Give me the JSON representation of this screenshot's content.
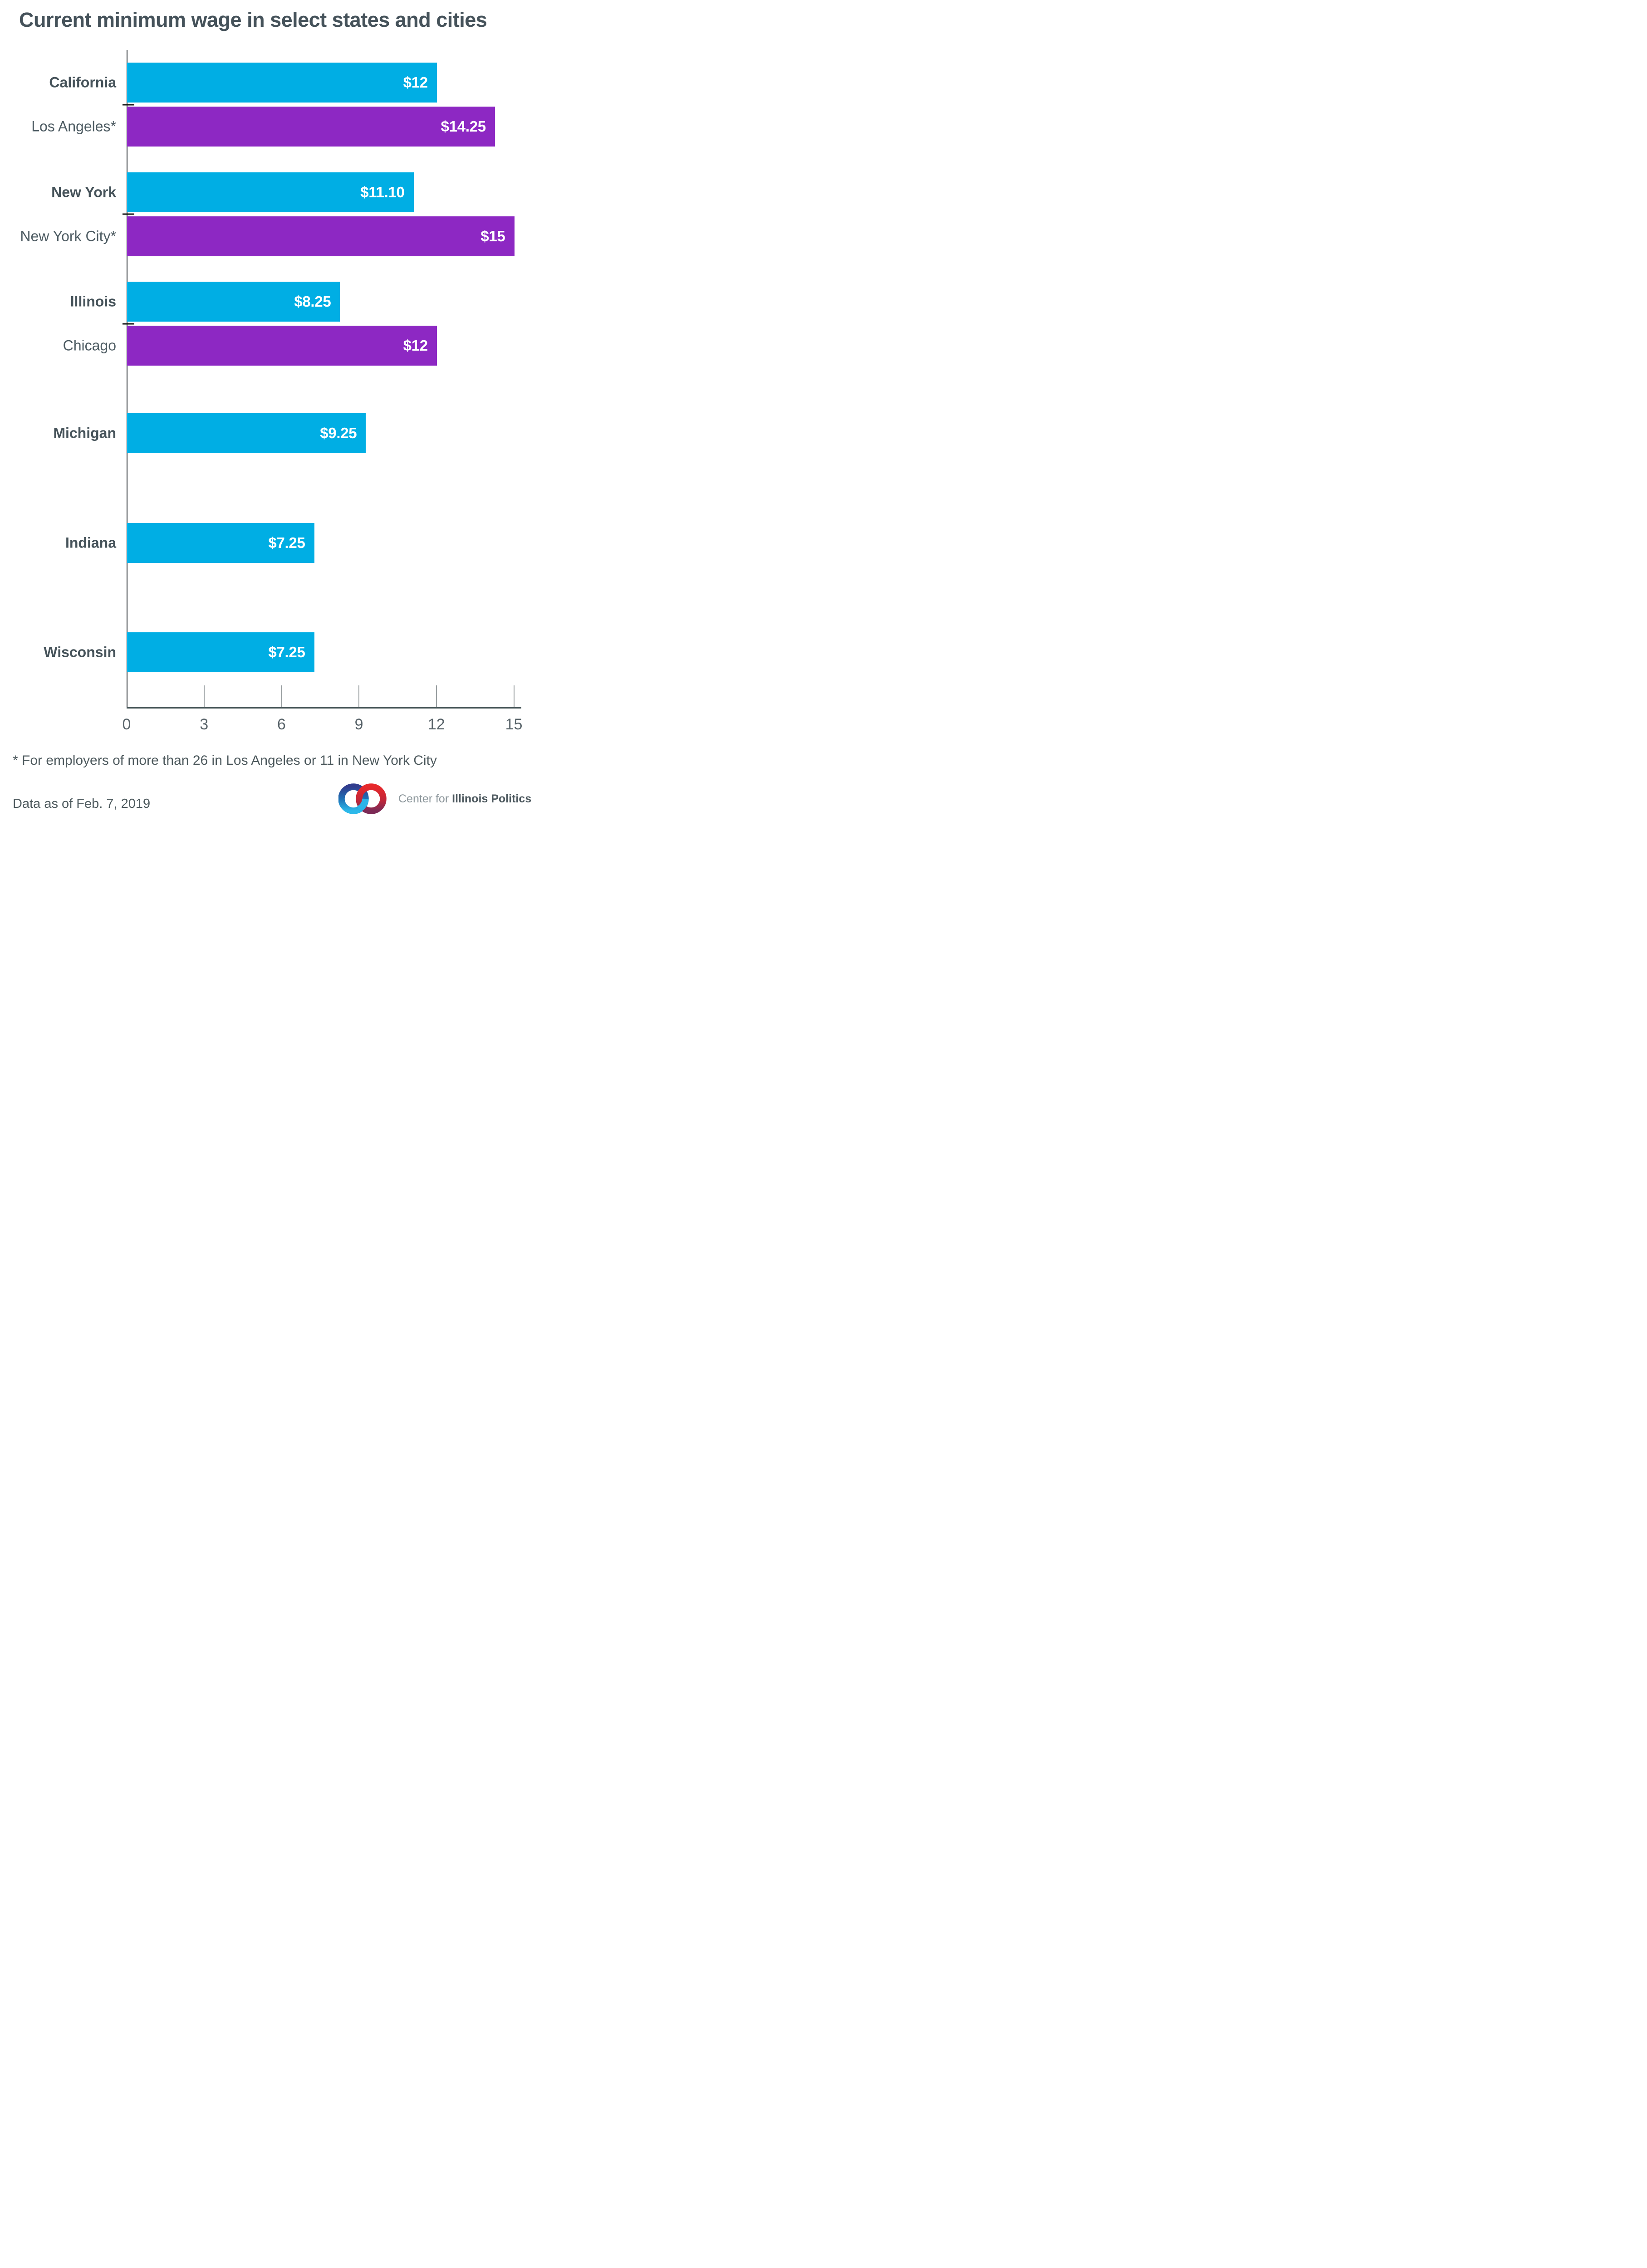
{
  "title": "Current minimum wage in select states and cities",
  "footnote": "* For employers of more than 26 in Los Angeles or 11 in New York City",
  "data_as_of": "Data as of Feb. 7, 2019",
  "logo": {
    "prefix": "Center for",
    "brand": "Illinois Politics",
    "ring_left_top_color": "#313c8d",
    "ring_left_bottom_color": "#2cb9ea",
    "ring_right_top_color": "#e7292b",
    "ring_right_bottom_color": "#7c2a56"
  },
  "colors": {
    "state_bar": "#00aee4",
    "city_bar": "#8d28c3",
    "value_text": "#ffffff",
    "axis": "#2c3235",
    "baseline": "#4b5a5c",
    "tick_line": "#9aa0a2",
    "label_text": "#46535a",
    "tick_text": "#59646a"
  },
  "chart_data": {
    "type": "bar",
    "orientation": "horizontal",
    "title": "Current minimum wage in select states and cities",
    "xlabel": "",
    "ylabel": "",
    "xlim": [
      0,
      15
    ],
    "xticks": [
      "0",
      "3",
      "6",
      "9",
      "12",
      "15"
    ],
    "grid": false,
    "legend": "none",
    "groups": [
      {
        "rows": [
          {
            "label": "California",
            "kind": "state",
            "value": 12,
            "value_label": "$12"
          },
          {
            "label": "Los Angeles*",
            "kind": "city",
            "value": 14.25,
            "value_label": "$14.25"
          }
        ]
      },
      {
        "rows": [
          {
            "label": "New York",
            "kind": "state",
            "value": 11.1,
            "value_label": "$11.10"
          },
          {
            "label": "New York City*",
            "kind": "city",
            "value": 15,
            "value_label": "$15"
          }
        ]
      },
      {
        "rows": [
          {
            "label": "Illinois",
            "kind": "state",
            "value": 8.25,
            "value_label": "$8.25"
          },
          {
            "label": "Chicago",
            "kind": "city",
            "value": 12,
            "value_label": "$12"
          }
        ]
      },
      {
        "rows": [
          {
            "label": "Michigan",
            "kind": "state",
            "value": 9.25,
            "value_label": "$9.25"
          }
        ]
      },
      {
        "rows": [
          {
            "label": "Indiana",
            "kind": "state",
            "value": 7.25,
            "value_label": "$7.25"
          }
        ]
      },
      {
        "rows": [
          {
            "label": "Wisconsin",
            "kind": "state",
            "value": 7.25,
            "value_label": "$7.25"
          }
        ]
      }
    ]
  }
}
